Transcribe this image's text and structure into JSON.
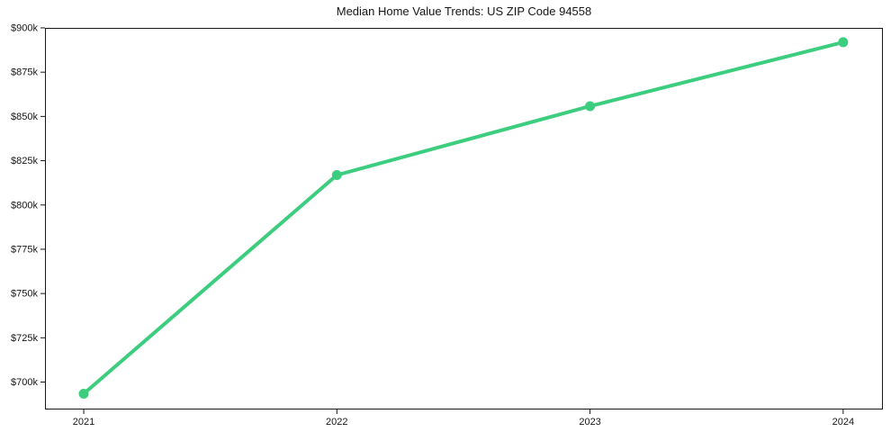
{
  "chart_data": {
    "type": "line",
    "title": "Median Home Value Trends: US ZIP Code 94558",
    "xlabel": "",
    "ylabel": "",
    "x": [
      2021,
      2022,
      2023,
      2024
    ],
    "x_tick_labels": [
      "2021",
      "2022",
      "2023",
      "2024"
    ],
    "series": [
      {
        "name": "Median Home Value",
        "values_k": [
          693.4,
          816.9,
          855.8,
          891.9
        ]
      }
    ],
    "y_ticks": [
      {
        "value": 700,
        "label": "$700k"
      },
      {
        "value": 725,
        "label": "$725k"
      },
      {
        "value": 750,
        "label": "$750k"
      },
      {
        "value": 775,
        "label": "$775k"
      },
      {
        "value": 800,
        "label": "$800k"
      },
      {
        "value": 825,
        "label": "$825k"
      },
      {
        "value": 850,
        "label": "$850k"
      },
      {
        "value": 875,
        "label": "$875k"
      },
      {
        "value": 900,
        "label": "$900k"
      }
    ],
    "xlim": [
      2020.847,
      2024.157
    ],
    "ylim_k": [
      684.5,
      900
    ],
    "grid": false,
    "legend_position": "none"
  },
  "colors": {
    "line": "#3dcd7f",
    "spine": "#161616",
    "text": "#161616",
    "background": "#ffffff"
  }
}
